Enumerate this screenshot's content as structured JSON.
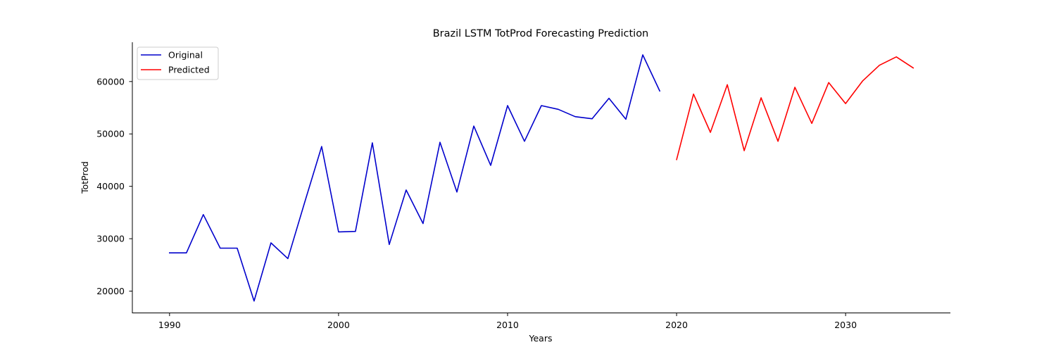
{
  "chart_data": {
    "type": "line",
    "title": "Brazil LSTM TotProd Forecasting Prediction",
    "xlabel": "Years",
    "ylabel": "TotProd",
    "xlim": [
      1987.8,
      2036.2
    ],
    "ylim": [
      15900,
      67500
    ],
    "xticks": [
      1990,
      2000,
      2010,
      2020,
      2030
    ],
    "yticks": [
      20000,
      30000,
      40000,
      50000,
      60000
    ],
    "grid": false,
    "legend_position": "top-left",
    "series": [
      {
        "name": "Original",
        "color": "#0000cc",
        "x": [
          1990,
          1991,
          1992,
          1993,
          1994,
          1995,
          1996,
          1997,
          1998,
          1999,
          2000,
          2001,
          2002,
          2003,
          2004,
          2005,
          2006,
          2007,
          2008,
          2009,
          2010,
          2011,
          2012,
          2013,
          2014,
          2015,
          2016,
          2017,
          2018,
          2019
        ],
        "values": [
          27300,
          27300,
          34600,
          28200,
          28200,
          18100,
          29200,
          26200,
          37000,
          47600,
          31300,
          31400,
          48300,
          28900,
          39300,
          32900,
          48400,
          38900,
          51500,
          44000,
          55400,
          48600,
          55400,
          54700,
          53300,
          52900,
          56800,
          52800,
          65100,
          58200
        ]
      },
      {
        "name": "Predicted",
        "color": "#ff0000",
        "x": [
          2020,
          2021,
          2022,
          2023,
          2024,
          2025,
          2026,
          2027,
          2028,
          2029,
          2030,
          2031,
          2032,
          2033,
          2034
        ],
        "values": [
          45100,
          57600,
          50300,
          59400,
          46800,
          56900,
          48600,
          58900,
          52000,
          59800,
          55800,
          60100,
          63100,
          64700,
          62600
        ]
      }
    ]
  }
}
